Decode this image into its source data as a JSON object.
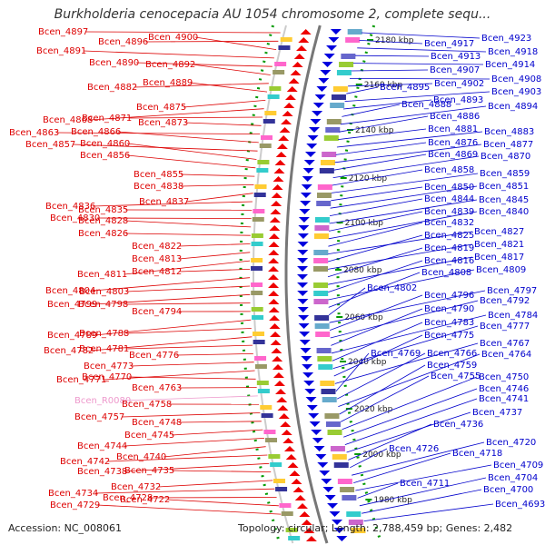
{
  "title": "Burkholderia cenocepacia AU 1054 chromosome 2, complete sequ...",
  "footer": {
    "accession": "Accession: NC_008061",
    "stats": "Topology: circular; Length: 2,788,459 bp; Genes: 2,482"
  },
  "colors": {
    "left_label": "#dd0000",
    "left_label_pseudo": "#ee99cc",
    "right_label": "#0000cc",
    "forward_arrow": "#ee0000",
    "reverse_arrow": "#0000dd",
    "backbone": "#777777",
    "tick": "#009900"
  },
  "kbp_ticks": [
    "2180 kbp",
    "2160 kbp",
    "2140 kbp",
    "2120 kbp",
    "2100 kbp",
    "2080 kbp",
    "2060 kbp",
    "2040 kbp",
    "2020 kbp",
    "2000 kbp",
    "1980 kbp"
  ],
  "left_labels": [
    {
      "text": "Bcen_4897"
    },
    {
      "text": "Bcen_4896"
    },
    {
      "text": "Bcen_4900"
    },
    {
      "text": "Bcen_4891"
    },
    {
      "text": "Bcen_4890"
    },
    {
      "text": "Bcen_4892"
    },
    {
      "text": "Bcen_4882"
    },
    {
      "text": "Bcen_4889"
    },
    {
      "text": "Bcen_4875"
    },
    {
      "text": "Bcen_4868"
    },
    {
      "text": "Bcen_4871"
    },
    {
      "text": "Bcen_4873"
    },
    {
      "text": "Bcen_4863"
    },
    {
      "text": "Bcen_4866"
    },
    {
      "text": "Bcen_4857"
    },
    {
      "text": "Bcen_4860"
    },
    {
      "text": "Bcen_4856"
    },
    {
      "text": "Bcen_4855"
    },
    {
      "text": "Bcen_4838"
    },
    {
      "text": "Bcen_4837"
    },
    {
      "text": "Bcen_4836"
    },
    {
      "text": "Bcen_4835"
    },
    {
      "text": "Bcen_4830"
    },
    {
      "text": "Bcen_4828"
    },
    {
      "text": "Bcen_4826"
    },
    {
      "text": "Bcen_4822"
    },
    {
      "text": "Bcen_4813"
    },
    {
      "text": "Bcen_4811"
    },
    {
      "text": "Bcen_4812"
    },
    {
      "text": "Bcen_4804"
    },
    {
      "text": "Bcen_4803"
    },
    {
      "text": "Bcen_4799"
    },
    {
      "text": "Bcen_4798"
    },
    {
      "text": "Bcen_4794"
    },
    {
      "text": "Bcen_4789"
    },
    {
      "text": "Bcen_4788"
    },
    {
      "text": "Bcen_4782"
    },
    {
      "text": "Bcen_4781"
    },
    {
      "text": "Bcen_4776"
    },
    {
      "text": "Bcen_4773"
    },
    {
      "text": "Bcen_4771"
    },
    {
      "text": "Bcen_4770"
    },
    {
      "text": "Bcen_4763"
    },
    {
      "text": "Bcen_R0080",
      "pseudo": true
    },
    {
      "text": "Bcen_4758"
    },
    {
      "text": "Bcen_4757"
    },
    {
      "text": "Bcen_4748"
    },
    {
      "text": "Bcen_4745"
    },
    {
      "text": "Bcen_4744"
    },
    {
      "text": "Bcen_4740"
    },
    {
      "text": "Bcen_4742"
    },
    {
      "text": "Bcen_4738"
    },
    {
      "text": "Bcen_4735"
    },
    {
      "text": "Bcen_4732"
    },
    {
      "text": "Bcen_4734"
    },
    {
      "text": "Bcen_4728"
    },
    {
      "text": "Bcen_4722"
    },
    {
      "text": "Bcen_4729"
    }
  ],
  "right_labels": [
    {
      "text": "Bcen_4923"
    },
    {
      "text": "Bcen_4917"
    },
    {
      "text": "Bcen_4918"
    },
    {
      "text": "Bcen_4913"
    },
    {
      "text": "Bcen_4914"
    },
    {
      "text": "Bcen_4907"
    },
    {
      "text": "Bcen_4908"
    },
    {
      "text": "Bcen_4902"
    },
    {
      "text": "Bcen_4895"
    },
    {
      "text": "Bcen_4903"
    },
    {
      "text": "Bcen_4893"
    },
    {
      "text": "Bcen_4888"
    },
    {
      "text": "Bcen_4894"
    },
    {
      "text": "Bcen_4886"
    },
    {
      "text": "Bcen_4881"
    },
    {
      "text": "Bcen_4883"
    },
    {
      "text": "Bcen_4876"
    },
    {
      "text": "Bcen_4877"
    },
    {
      "text": "Bcen_4869"
    },
    {
      "text": "Bcen_4870"
    },
    {
      "text": "Bcen_4858"
    },
    {
      "text": "Bcen_4859"
    },
    {
      "text": "Bcen_4850"
    },
    {
      "text": "Bcen_4851"
    },
    {
      "text": "Bcen_4844"
    },
    {
      "text": "Bcen_4845"
    },
    {
      "text": "Bcen_4839"
    },
    {
      "text": "Bcen_4840"
    },
    {
      "text": "Bcen_4832"
    },
    {
      "text": "Bcen_4827"
    },
    {
      "text": "Bcen_4825"
    },
    {
      "text": "Bcen_4821"
    },
    {
      "text": "Bcen_4819"
    },
    {
      "text": "Bcen_4817"
    },
    {
      "text": "Bcen_4816"
    },
    {
      "text": "Bcen_4809"
    },
    {
      "text": "Bcen_4808"
    },
    {
      "text": "Bcen_4802"
    },
    {
      "text": "Bcen_4797"
    },
    {
      "text": "Bcen_4796"
    },
    {
      "text": "Bcen_4792"
    },
    {
      "text": "Bcen_4790"
    },
    {
      "text": "Bcen_4784"
    },
    {
      "text": "Bcen_4783"
    },
    {
      "text": "Bcen_4777"
    },
    {
      "text": "Bcen_4775"
    },
    {
      "text": "Bcen_4767"
    },
    {
      "text": "Bcen_4769"
    },
    {
      "text": "Bcen_4766"
    },
    {
      "text": "Bcen_4764"
    },
    {
      "text": "Bcen_4759"
    },
    {
      "text": "Bcen_4755"
    },
    {
      "text": "Bcen_4750"
    },
    {
      "text": "Bcen_4746"
    },
    {
      "text": "Bcen_4741"
    },
    {
      "text": "Bcen_4737"
    },
    {
      "text": "Bcen_4736"
    },
    {
      "text": "Bcen_4726"
    },
    {
      "text": "Bcen_4720"
    },
    {
      "text": "Bcen_4718"
    },
    {
      "text": "Bcen_4709"
    },
    {
      "text": "Bcen_4711"
    },
    {
      "text": "Bcen_4704"
    },
    {
      "text": "Bcen_4700"
    },
    {
      "text": "Bcen_4693"
    }
  ]
}
